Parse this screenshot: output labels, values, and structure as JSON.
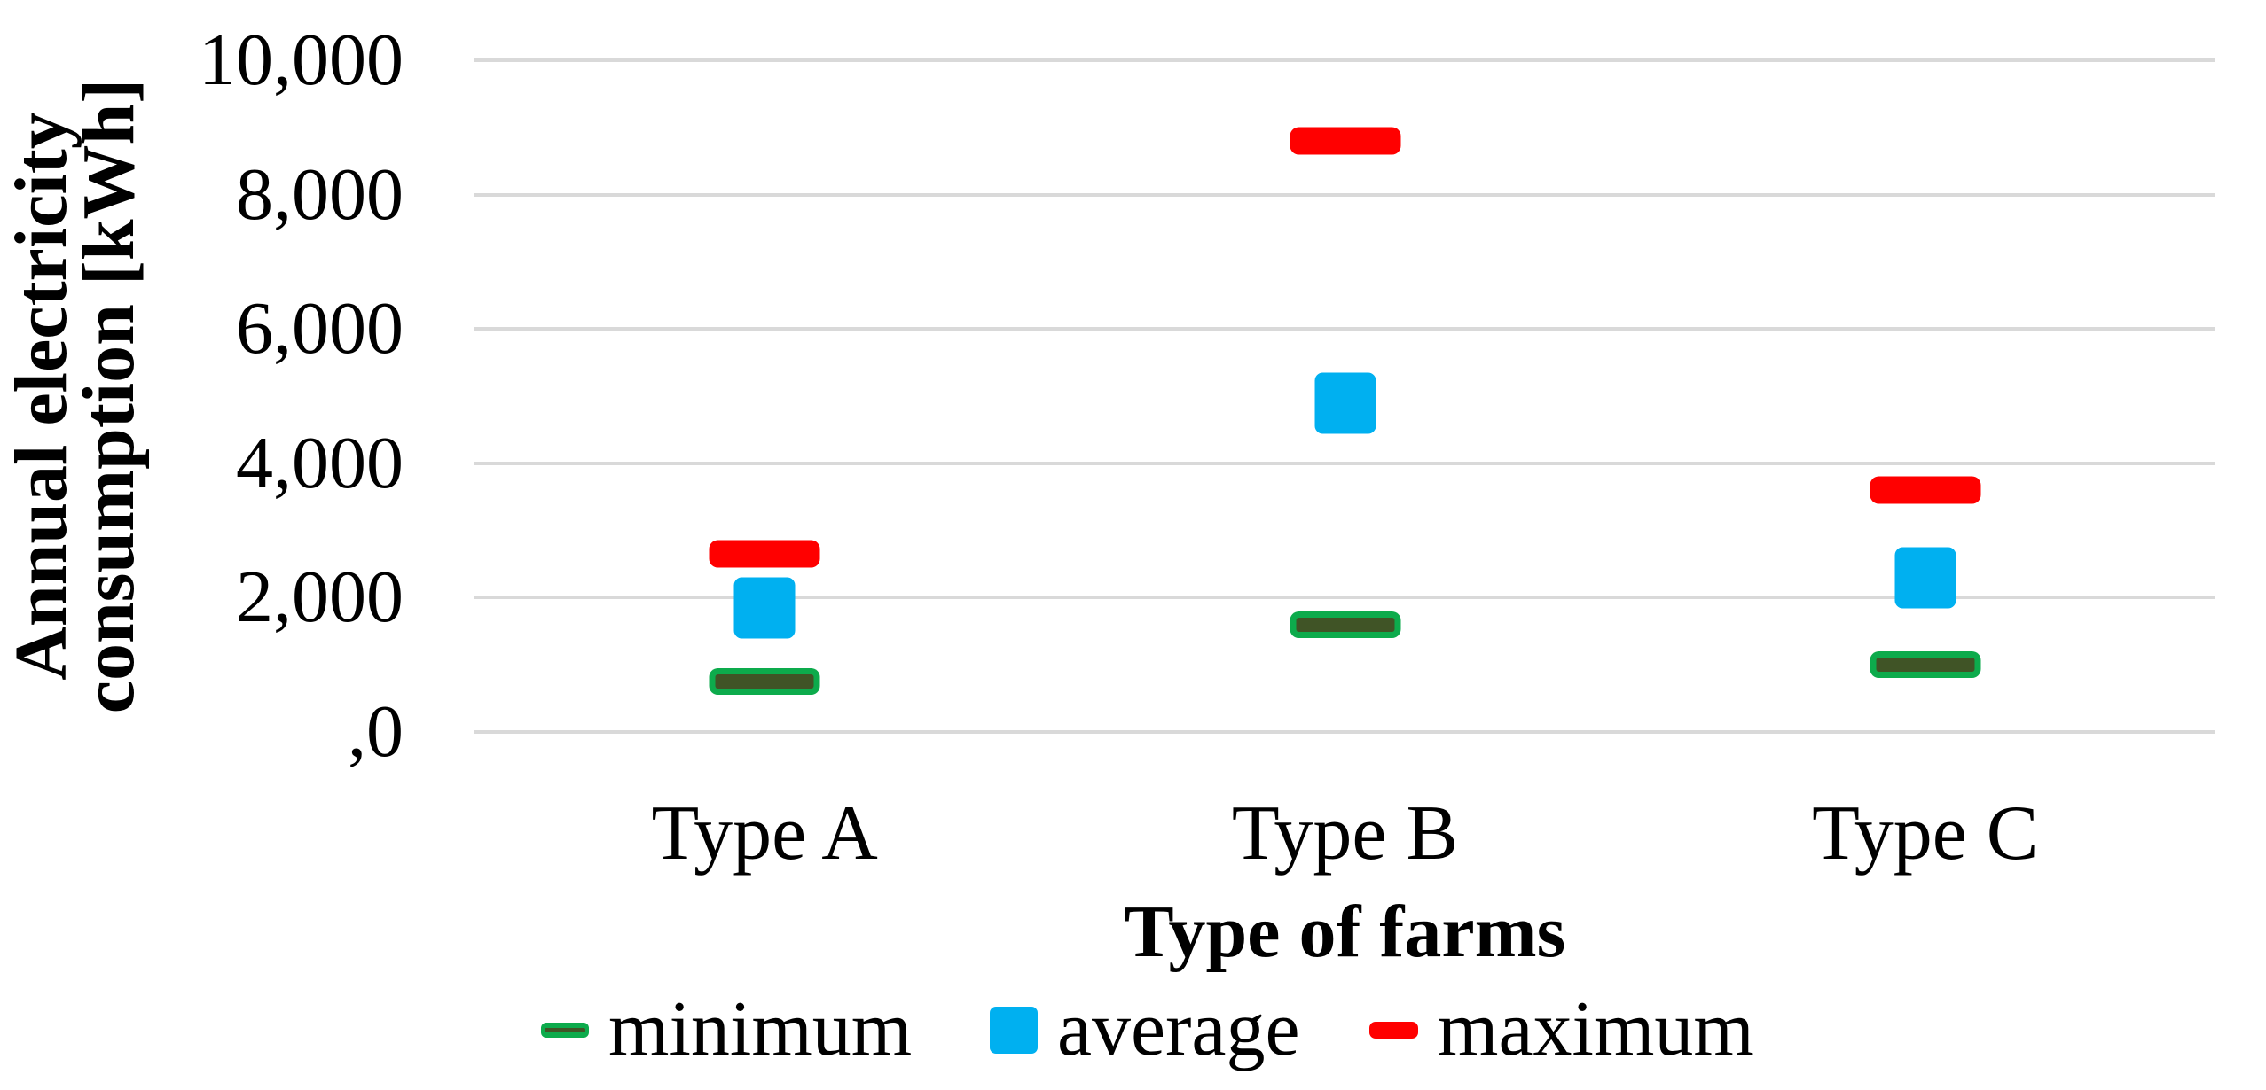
{
  "chart_data": {
    "type": "scatter",
    "title": "",
    "categories": [
      "Type A",
      "Type B",
      "Type C"
    ],
    "series": [
      {
        "name": "minimum",
        "marker": "outlined-dash",
        "color": "#0DAB4C",
        "fill": "#405426",
        "values": [
          750,
          1600,
          1000
        ]
      },
      {
        "name": "average",
        "marker": "square",
        "color": "#00B0F0",
        "values": [
          1850,
          4900,
          2300
        ]
      },
      {
        "name": "maximum",
        "marker": "dash",
        "color": "#FF0000",
        "values": [
          2650,
          8800,
          3600
        ]
      }
    ],
    "xlabel": "Type of farms",
    "ylabel": "Annual electricity consumption [kWh]",
    "ylabel_lines": [
      "Annual electricity",
      "consumption [kWh]"
    ],
    "ylim": [
      0,
      10000
    ],
    "ytick_labels": [
      "10,000",
      "8,000",
      "6,000",
      "4,000",
      "2,000",
      ",0"
    ],
    "grid": true,
    "gridline_color": "#D9D9D9",
    "legend_position": "bottom"
  }
}
